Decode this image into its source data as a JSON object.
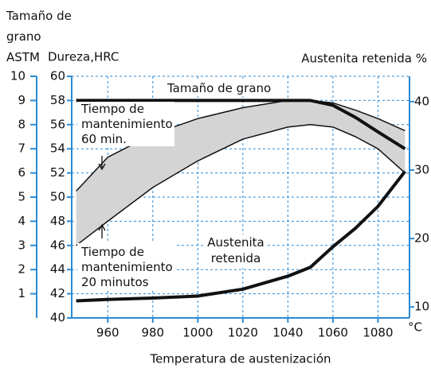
{
  "chart_data": {
    "type": "line",
    "title_lines": [
      "Tamaño de",
      "grano",
      "ASTM"
    ],
    "ylabel": "Dureza,HRC",
    "y2label": "Austenita retenida %",
    "xlabel": "Temperatura de austenización",
    "xunit": "°C",
    "x": [
      946,
      960,
      980,
      1000,
      1020,
      1040,
      1050,
      1060,
      1070,
      1080,
      1092
    ],
    "xlim": [
      944,
      1094
    ],
    "xticks": [
      960,
      980,
      1000,
      1020,
      1040,
      1060,
      1080
    ],
    "ylim": [
      40,
      60
    ],
    "yticks": [
      40,
      42,
      44,
      46,
      48,
      50,
      52,
      54,
      56,
      58,
      60
    ],
    "y2lim": [
      8.4,
      43.7
    ],
    "y2ticks": [
      10,
      20,
      30,
      40
    ],
    "y3lim": [
      0,
      10
    ],
    "y3ticks": [
      1,
      2,
      3,
      4,
      5,
      6,
      7,
      8,
      9,
      10
    ],
    "grid": true,
    "series": [
      {
        "name": "Tiempo de mantenimiento 60 min.",
        "color": "#111111",
        "values": [
          50.5,
          53.3,
          55.2,
          56.5,
          57.4,
          58,
          58,
          57.8,
          57.2,
          56.5,
          55.5
        ]
      },
      {
        "name": "Tiempo de mantenimiento 20 minutos",
        "color": "#111111",
        "values": [
          46,
          48,
          50.8,
          53,
          54.8,
          55.8,
          56,
          55.8,
          55,
          54,
          52
        ]
      },
      {
        "name": "Tamaño de grano",
        "color": "#111111",
        "axis": "y3",
        "values": [
          9,
          9,
          9,
          9,
          9,
          9,
          9,
          8.8,
          8.3,
          7.7,
          7
        ]
      },
      {
        "name": "Austenita retenida",
        "color": "#111111",
        "axis": "y2",
        "values": [
          10.9,
          11.1,
          11.3,
          11.6,
          12.6,
          14.5,
          15.8,
          18.8,
          21.5,
          24.7,
          29.8
        ]
      }
    ],
    "annotations": [
      {
        "lines": [
          "Tamaño de grano"
        ]
      },
      {
        "lines": [
          "Tiempo de",
          "mantenimiento",
          "60 min."
        ]
      },
      {
        "lines": [
          "Tiempo de",
          "mantenimiento",
          "20 minutos"
        ]
      },
      {
        "lines": [
          "Austenita",
          "retenida"
        ]
      }
    ]
  }
}
